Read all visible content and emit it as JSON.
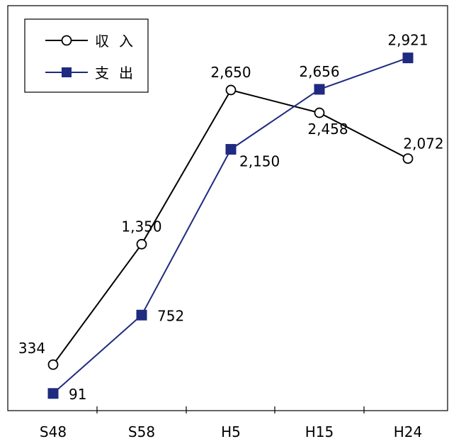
{
  "chart_data": {
    "type": "line",
    "categories": [
      "S48",
      "S58",
      "H5",
      "H15",
      "H24"
    ],
    "series": [
      {
        "name": "収入",
        "values": [
          334,
          1350,
          2650,
          2458,
          2072
        ],
        "labels": [
          "334",
          "1,350",
          "2,650",
          "2,458",
          "2,072"
        ],
        "color": "#000000",
        "marker": "circle-open"
      },
      {
        "name": "支出",
        "values": [
          91,
          752,
          2150,
          2656,
          2921
        ],
        "labels": [
          "91",
          "752",
          "2,150",
          "2,656",
          "2,921"
        ],
        "color": "#1f2a80",
        "marker": "square-filled"
      }
    ],
    "ylim": [
      0,
      3200
    ],
    "grid": false,
    "legend": "top-left"
  }
}
